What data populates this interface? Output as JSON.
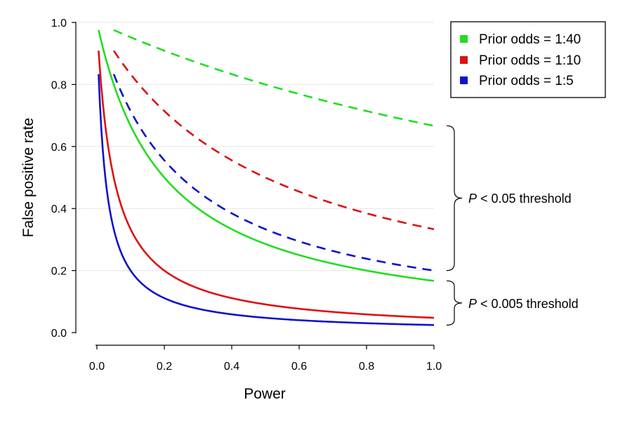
{
  "chart_data": {
    "type": "line",
    "xlabel": "Power",
    "ylabel": "False positive rate",
    "xlim": [
      0.0,
      1.0
    ],
    "ylim": [
      0.0,
      1.0
    ],
    "xticks": [
      "0.0",
      "0.2",
      "0.4",
      "0.6",
      "0.8",
      "1.0"
    ],
    "yticks": [
      "0.0",
      "0.2",
      "0.4",
      "0.6",
      "0.8",
      "1.0"
    ],
    "grid": "horizontal",
    "legend_position": "top-right",
    "legend": [
      {
        "label": "Prior odds = 1:40",
        "color": "#22dd22"
      },
      {
        "label": "Prior odds = 1:10",
        "color": "#dd1111"
      },
      {
        "label": "Prior odds = 1:5",
        "color": "#1111cc"
      }
    ],
    "series": [
      {
        "name": "Prior odds = 1:40",
        "threshold": "P < 0.05",
        "style": "dashed",
        "color": "#22dd22",
        "alpha": 0.05,
        "odds": 40,
        "x_start": 0.05,
        "x": [
          0.05,
          0.2,
          0.4,
          0.6,
          0.8,
          1.0
        ],
        "y": [
          0.976,
          0.909,
          0.833,
          0.769,
          0.714,
          0.667
        ]
      },
      {
        "name": "Prior odds = 1:10",
        "threshold": "P < 0.05",
        "style": "dashed",
        "color": "#dd1111",
        "alpha": 0.05,
        "odds": 10,
        "x_start": 0.05,
        "x": [
          0.05,
          0.2,
          0.4,
          0.6,
          0.8,
          1.0
        ],
        "y": [
          0.909,
          0.714,
          0.556,
          0.455,
          0.385,
          0.333
        ]
      },
      {
        "name": "Prior odds = 1:5",
        "threshold": "P < 0.05",
        "style": "dashed",
        "color": "#1111cc",
        "alpha": 0.05,
        "odds": 5,
        "x_start": 0.05,
        "x": [
          0.05,
          0.2,
          0.4,
          0.6,
          0.8,
          1.0
        ],
        "y": [
          0.833,
          0.556,
          0.385,
          0.294,
          0.238,
          0.2
        ]
      },
      {
        "name": "Prior odds = 1:40",
        "threshold": "P < 0.005",
        "style": "solid",
        "color": "#22dd22",
        "alpha": 0.005,
        "odds": 40,
        "x_start": 0.005,
        "x": [
          0.005,
          0.2,
          0.4,
          0.6,
          0.8,
          1.0
        ],
        "y": [
          0.976,
          0.5,
          0.333,
          0.25,
          0.2,
          0.167
        ]
      },
      {
        "name": "Prior odds = 1:10",
        "threshold": "P < 0.005",
        "style": "solid",
        "color": "#dd1111",
        "alpha": 0.005,
        "odds": 10,
        "x_start": 0.005,
        "x": [
          0.005,
          0.2,
          0.4,
          0.6,
          0.8,
          1.0
        ],
        "y": [
          0.909,
          0.2,
          0.111,
          0.077,
          0.059,
          0.048
        ]
      },
      {
        "name": "Prior odds = 1:5",
        "threshold": "P < 0.005",
        "style": "solid",
        "color": "#1111cc",
        "alpha": 0.005,
        "odds": 5,
        "x_start": 0.005,
        "x": [
          0.005,
          0.2,
          0.4,
          0.6,
          0.8,
          1.0
        ],
        "y": [
          0.833,
          0.111,
          0.059,
          0.04,
          0.03,
          0.024
        ]
      }
    ],
    "annotations": [
      {
        "italic": "P",
        "text": " < 0.05 threshold",
        "y_range": [
          0.2,
          0.667
        ]
      },
      {
        "italic": "P",
        "text": " < 0.005 threshold",
        "y_range": [
          0.024,
          0.167
        ]
      }
    ]
  }
}
